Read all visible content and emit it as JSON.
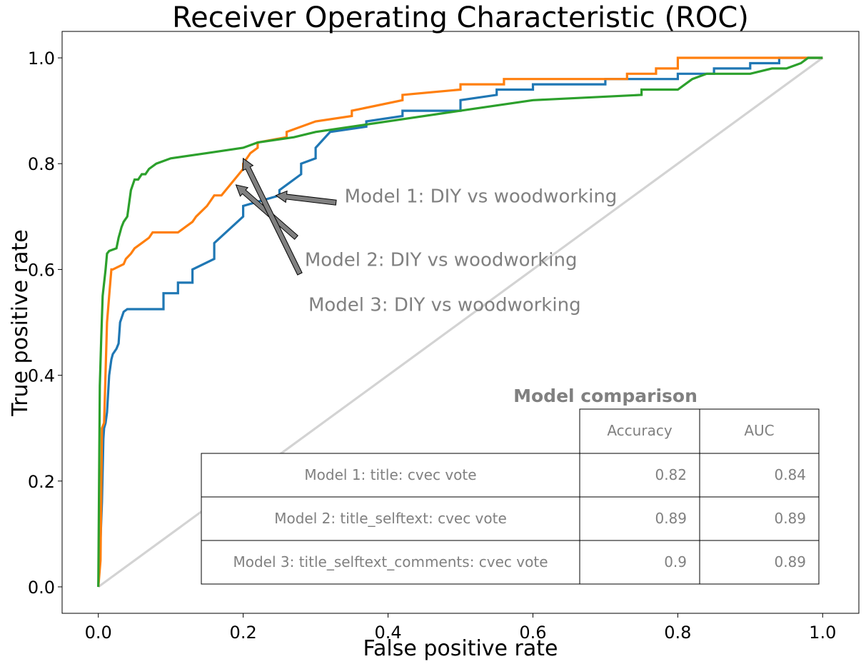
{
  "chart_data": {
    "type": "line",
    "title": "Receiver Operating Characteristic (ROC)",
    "xlabel": "False positive rate",
    "ylabel": "True positive rate",
    "xlim": [
      -0.05,
      1.05
    ],
    "ylim": [
      -0.05,
      1.05
    ],
    "xticks": [
      0.0,
      0.2,
      0.4,
      0.6,
      0.8,
      1.0
    ],
    "xtick_labels": [
      "0.0",
      "0.2",
      "0.4",
      "0.6",
      "0.8",
      "1.0"
    ],
    "yticks": [
      0.0,
      0.2,
      0.4,
      0.6,
      0.8,
      1.0
    ],
    "ytick_labels": [
      "0.0",
      "0.2",
      "0.4",
      "0.6",
      "0.8",
      "1.0"
    ],
    "grid": false,
    "series": [
      {
        "color": "#1f77b4",
        "x": [
          0,
          0.003,
          0.005,
          0.007,
          0.008,
          0.01,
          0.012,
          0.015,
          0.018,
          0.02,
          0.025,
          0.028,
          0.03,
          0.035,
          0.04,
          0.04,
          0.09,
          0.09,
          0.11,
          0.11,
          0.13,
          0.13,
          0.16,
          0.16,
          0.2,
          0.2,
          0.25,
          0.25,
          0.28,
          0.28,
          0.3,
          0.3,
          0.32,
          0.32,
          0.37,
          0.37,
          0.42,
          0.42,
          0.5,
          0.5,
          0.55,
          0.55,
          0.6,
          0.6,
          0.7,
          0.7,
          0.8,
          0.8,
          0.85,
          0.85,
          0.9,
          0.9,
          0.94,
          0.94,
          1.0
        ],
        "y": [
          0,
          0.09,
          0.16,
          0.28,
          0.3,
          0.31,
          0.33,
          0.4,
          0.43,
          0.44,
          0.45,
          0.46,
          0.5,
          0.52,
          0.525,
          0.525,
          0.525,
          0.555,
          0.555,
          0.575,
          0.575,
          0.6,
          0.62,
          0.65,
          0.7,
          0.72,
          0.74,
          0.75,
          0.78,
          0.8,
          0.81,
          0.83,
          0.86,
          0.86,
          0.87,
          0.88,
          0.89,
          0.9,
          0.9,
          0.92,
          0.93,
          0.94,
          0.94,
          0.95,
          0.95,
          0.96,
          0.96,
          0.97,
          0.97,
          0.98,
          0.98,
          0.99,
          0.99,
          1.0,
          1.0
        ]
      },
      {
        "color": "#ff7f0e",
        "x": [
          0,
          0.003,
          0.005,
          0.008,
          0.012,
          0.015,
          0.018,
          0.02,
          0.035,
          0.038,
          0.045,
          0.05,
          0.06,
          0.07,
          0.075,
          0.11,
          0.12,
          0.13,
          0.135,
          0.15,
          0.16,
          0.17,
          0.2,
          0.2,
          0.21,
          0.22,
          0.22,
          0.26,
          0.26,
          0.3,
          0.3,
          0.35,
          0.35,
          0.42,
          0.42,
          0.5,
          0.5,
          0.56,
          0.56,
          0.73,
          0.73,
          0.77,
          0.77,
          0.8,
          0.8,
          1.0
        ],
        "y": [
          0,
          0.05,
          0.3,
          0.31,
          0.5,
          0.55,
          0.6,
          0.6,
          0.61,
          0.62,
          0.63,
          0.64,
          0.65,
          0.66,
          0.67,
          0.67,
          0.68,
          0.69,
          0.7,
          0.72,
          0.74,
          0.74,
          0.79,
          0.8,
          0.82,
          0.83,
          0.84,
          0.85,
          0.86,
          0.88,
          0.88,
          0.89,
          0.9,
          0.92,
          0.93,
          0.94,
          0.95,
          0.95,
          0.96,
          0.96,
          0.97,
          0.97,
          0.98,
          0.98,
          1.0,
          1.0
        ]
      },
      {
        "color": "#2ca02c",
        "x": [
          0,
          0.002,
          0.004,
          0.006,
          0.01,
          0.012,
          0.015,
          0.025,
          0.028,
          0.03,
          0.032,
          0.035,
          0.04,
          0.045,
          0.05,
          0.055,
          0.06,
          0.065,
          0.07,
          0.08,
          0.1,
          0.15,
          0.2,
          0.22,
          0.27,
          0.3,
          0.5,
          0.55,
          0.6,
          0.75,
          0.75,
          0.8,
          0.82,
          0.84,
          0.9,
          0.93,
          0.95,
          0.97,
          0.98,
          1.0
        ],
        "y": [
          0,
          0.38,
          0.47,
          0.55,
          0.6,
          0.63,
          0.635,
          0.64,
          0.66,
          0.67,
          0.68,
          0.69,
          0.7,
          0.75,
          0.77,
          0.77,
          0.78,
          0.78,
          0.79,
          0.8,
          0.81,
          0.82,
          0.83,
          0.84,
          0.85,
          0.86,
          0.9,
          0.91,
          0.92,
          0.93,
          0.94,
          0.94,
          0.96,
          0.97,
          0.97,
          0.98,
          0.98,
          0.99,
          1.0,
          1.0
        ]
      },
      {
        "color": "#d3d3d3",
        "x": [
          0,
          1
        ],
        "y": [
          0,
          1
        ]
      }
    ],
    "annotations": [
      {
        "text": "Model 1: DIY vs woodworking",
        "text_xy": [
          0.34,
          0.74
        ],
        "arrow_to": [
          0.245,
          0.74
        ]
      },
      {
        "text": "Model 2: DIY vs woodworking",
        "text_xy": [
          0.285,
          0.62
        ],
        "arrow_to": [
          0.19,
          0.76
        ]
      },
      {
        "text": "Model 3: DIY vs woodworking",
        "text_xy": [
          0.29,
          0.535
        ],
        "arrow_to": [
          0.2,
          0.81
        ]
      }
    ],
    "annotation_color": "#808080",
    "table": {
      "title": "Model comparison",
      "columns": [
        "Accuracy",
        "AUC"
      ],
      "rows": [
        {
          "label": "Model 1: title: cvec vote",
          "values": [
            "0.82",
            "0.84"
          ]
        },
        {
          "label": "Model 2: title_selftext: cvec vote",
          "values": [
            "0.89",
            "0.89"
          ]
        },
        {
          "label": "Model 3: title_selftext_comments: cvec vote",
          "values": [
            "0.9",
            "0.89"
          ]
        }
      ]
    }
  }
}
